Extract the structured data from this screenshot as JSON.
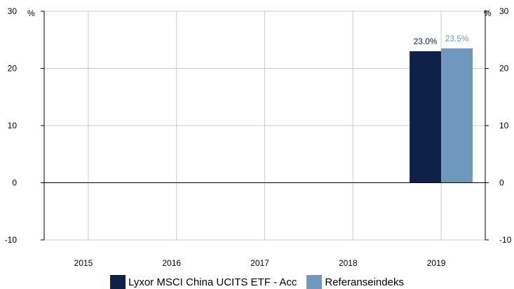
{
  "chart_data": {
    "type": "bar",
    "categories": [
      "2015",
      "2016",
      "2017",
      "2018",
      "2019"
    ],
    "series": [
      {
        "name": "Lyxor MSCI China UCITS ETF - Acc",
        "color": "#0e2148",
        "label_color": "#0e2148",
        "values": [
          null,
          null,
          null,
          null,
          23.0
        ],
        "labels": [
          "",
          "",
          "",
          "",
          "23.0%"
        ]
      },
      {
        "name": "Referanseindeks",
        "color": "#7097bd",
        "label_color": "#7097bd",
        "values": [
          null,
          null,
          null,
          null,
          23.5
        ],
        "labels": [
          "",
          "",
          "",
          "",
          "23.5%"
        ]
      }
    ],
    "ylim": [
      -10,
      30
    ],
    "yticks": [
      "30",
      "20",
      "10",
      "0",
      "-10"
    ],
    "y_unit": "%",
    "grid": true,
    "legend_position": "bottom"
  }
}
